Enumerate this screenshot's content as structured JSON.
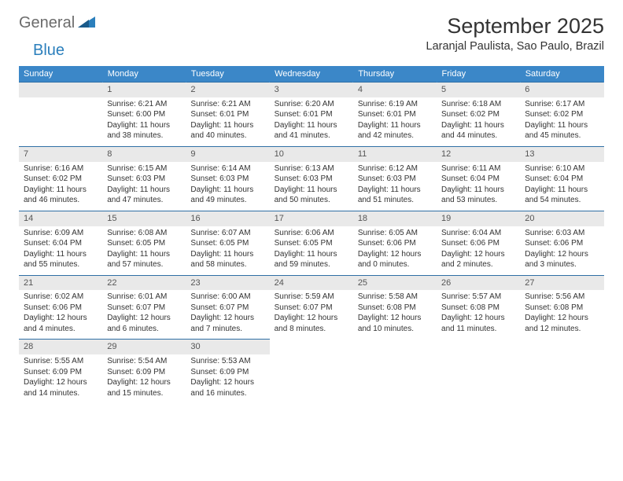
{
  "logo": {
    "general": "General",
    "blue": "Blue"
  },
  "title": "September 2025",
  "location": "Laranjal Paulista, Sao Paulo, Brazil",
  "colors": {
    "header_bg": "#3b87c8",
    "header_text": "#ffffff",
    "border": "#2f6fa5",
    "daynum_bg": "#e9e9e9",
    "logo_blue": "#2b7fbc",
    "logo_gray": "#6b6b6b"
  },
  "day_headers": [
    "Sunday",
    "Monday",
    "Tuesday",
    "Wednesday",
    "Thursday",
    "Friday",
    "Saturday"
  ],
  "weeks": [
    [
      {
        "blank": true
      },
      {
        "num": "1",
        "sunrise": "Sunrise: 6:21 AM",
        "sunset": "Sunset: 6:00 PM",
        "daylight": "Daylight: 11 hours and 38 minutes."
      },
      {
        "num": "2",
        "sunrise": "Sunrise: 6:21 AM",
        "sunset": "Sunset: 6:01 PM",
        "daylight": "Daylight: 11 hours and 40 minutes."
      },
      {
        "num": "3",
        "sunrise": "Sunrise: 6:20 AM",
        "sunset": "Sunset: 6:01 PM",
        "daylight": "Daylight: 11 hours and 41 minutes."
      },
      {
        "num": "4",
        "sunrise": "Sunrise: 6:19 AM",
        "sunset": "Sunset: 6:01 PM",
        "daylight": "Daylight: 11 hours and 42 minutes."
      },
      {
        "num": "5",
        "sunrise": "Sunrise: 6:18 AM",
        "sunset": "Sunset: 6:02 PM",
        "daylight": "Daylight: 11 hours and 44 minutes."
      },
      {
        "num": "6",
        "sunrise": "Sunrise: 6:17 AM",
        "sunset": "Sunset: 6:02 PM",
        "daylight": "Daylight: 11 hours and 45 minutes."
      }
    ],
    [
      {
        "num": "7",
        "sunrise": "Sunrise: 6:16 AM",
        "sunset": "Sunset: 6:02 PM",
        "daylight": "Daylight: 11 hours and 46 minutes."
      },
      {
        "num": "8",
        "sunrise": "Sunrise: 6:15 AM",
        "sunset": "Sunset: 6:03 PM",
        "daylight": "Daylight: 11 hours and 47 minutes."
      },
      {
        "num": "9",
        "sunrise": "Sunrise: 6:14 AM",
        "sunset": "Sunset: 6:03 PM",
        "daylight": "Daylight: 11 hours and 49 minutes."
      },
      {
        "num": "10",
        "sunrise": "Sunrise: 6:13 AM",
        "sunset": "Sunset: 6:03 PM",
        "daylight": "Daylight: 11 hours and 50 minutes."
      },
      {
        "num": "11",
        "sunrise": "Sunrise: 6:12 AM",
        "sunset": "Sunset: 6:03 PM",
        "daylight": "Daylight: 11 hours and 51 minutes."
      },
      {
        "num": "12",
        "sunrise": "Sunrise: 6:11 AM",
        "sunset": "Sunset: 6:04 PM",
        "daylight": "Daylight: 11 hours and 53 minutes."
      },
      {
        "num": "13",
        "sunrise": "Sunrise: 6:10 AM",
        "sunset": "Sunset: 6:04 PM",
        "daylight": "Daylight: 11 hours and 54 minutes."
      }
    ],
    [
      {
        "num": "14",
        "sunrise": "Sunrise: 6:09 AM",
        "sunset": "Sunset: 6:04 PM",
        "daylight": "Daylight: 11 hours and 55 minutes."
      },
      {
        "num": "15",
        "sunrise": "Sunrise: 6:08 AM",
        "sunset": "Sunset: 6:05 PM",
        "daylight": "Daylight: 11 hours and 57 minutes."
      },
      {
        "num": "16",
        "sunrise": "Sunrise: 6:07 AM",
        "sunset": "Sunset: 6:05 PM",
        "daylight": "Daylight: 11 hours and 58 minutes."
      },
      {
        "num": "17",
        "sunrise": "Sunrise: 6:06 AM",
        "sunset": "Sunset: 6:05 PM",
        "daylight": "Daylight: 11 hours and 59 minutes."
      },
      {
        "num": "18",
        "sunrise": "Sunrise: 6:05 AM",
        "sunset": "Sunset: 6:06 PM",
        "daylight": "Daylight: 12 hours and 0 minutes."
      },
      {
        "num": "19",
        "sunrise": "Sunrise: 6:04 AM",
        "sunset": "Sunset: 6:06 PM",
        "daylight": "Daylight: 12 hours and 2 minutes."
      },
      {
        "num": "20",
        "sunrise": "Sunrise: 6:03 AM",
        "sunset": "Sunset: 6:06 PM",
        "daylight": "Daylight: 12 hours and 3 minutes."
      }
    ],
    [
      {
        "num": "21",
        "sunrise": "Sunrise: 6:02 AM",
        "sunset": "Sunset: 6:06 PM",
        "daylight": "Daylight: 12 hours and 4 minutes."
      },
      {
        "num": "22",
        "sunrise": "Sunrise: 6:01 AM",
        "sunset": "Sunset: 6:07 PM",
        "daylight": "Daylight: 12 hours and 6 minutes."
      },
      {
        "num": "23",
        "sunrise": "Sunrise: 6:00 AM",
        "sunset": "Sunset: 6:07 PM",
        "daylight": "Daylight: 12 hours and 7 minutes."
      },
      {
        "num": "24",
        "sunrise": "Sunrise: 5:59 AM",
        "sunset": "Sunset: 6:07 PM",
        "daylight": "Daylight: 12 hours and 8 minutes."
      },
      {
        "num": "25",
        "sunrise": "Sunrise: 5:58 AM",
        "sunset": "Sunset: 6:08 PM",
        "daylight": "Daylight: 12 hours and 10 minutes."
      },
      {
        "num": "26",
        "sunrise": "Sunrise: 5:57 AM",
        "sunset": "Sunset: 6:08 PM",
        "daylight": "Daylight: 12 hours and 11 minutes."
      },
      {
        "num": "27",
        "sunrise": "Sunrise: 5:56 AM",
        "sunset": "Sunset: 6:08 PM",
        "daylight": "Daylight: 12 hours and 12 minutes."
      }
    ],
    [
      {
        "num": "28",
        "sunrise": "Sunrise: 5:55 AM",
        "sunset": "Sunset: 6:09 PM",
        "daylight": "Daylight: 12 hours and 14 minutes."
      },
      {
        "num": "29",
        "sunrise": "Sunrise: 5:54 AM",
        "sunset": "Sunset: 6:09 PM",
        "daylight": "Daylight: 12 hours and 15 minutes."
      },
      {
        "num": "30",
        "sunrise": "Sunrise: 5:53 AM",
        "sunset": "Sunset: 6:09 PM",
        "daylight": "Daylight: 12 hours and 16 minutes."
      },
      {
        "blank": true
      },
      {
        "blank": true
      },
      {
        "blank": true
      },
      {
        "blank": true
      }
    ]
  ]
}
